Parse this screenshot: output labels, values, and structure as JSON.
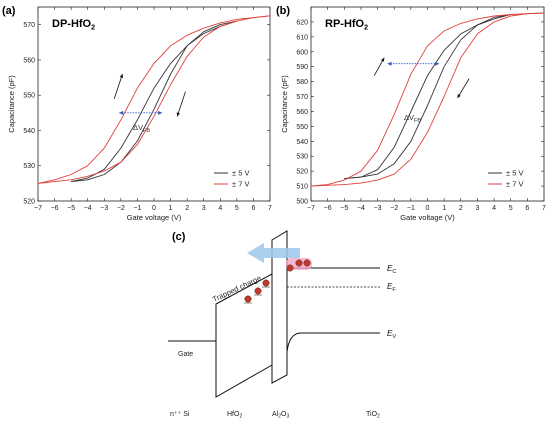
{
  "panels": {
    "a": {
      "label": "(a)",
      "title_main": "DP-HfO",
      "title_sub": "2",
      "dvfb_main": "ΔV",
      "dvfb_sub": "FB"
    },
    "b": {
      "label": "(b)",
      "title_main": "RP-HfO",
      "title_sub": "2",
      "dvfb_main": "ΔV",
      "dvfb_sub": "FB"
    },
    "c": {
      "label": "(c)",
      "trapped_charge": "Trapped charge",
      "gate": "Gate",
      "ec_main": "E",
      "ec_sub": "C",
      "ef_main": "E",
      "ef_sub": "F",
      "ev_main": "E",
      "ev_sub": "V",
      "layers": {
        "nsi": "n⁺⁺ Si",
        "hfo_main": "HfO",
        "hfo_sub": "2",
        "al_main": "Al",
        "al_sub1": "2",
        "al_mid": "O",
        "al_sub2": "3",
        "tio_main": "TiO",
        "tio_sub": "2"
      }
    }
  },
  "chart_data": [
    {
      "type": "line",
      "title": "DP-HfO2",
      "xlabel": "Gate voltage (V)",
      "ylabel": "Capacitance (pF)",
      "xlim": [
        -7,
        7
      ],
      "ylim": [
        520,
        575
      ],
      "xticks": [
        -7,
        -6,
        -5,
        -4,
        -3,
        -2,
        -1,
        0,
        1,
        2,
        3,
        4,
        5,
        6,
        7
      ],
      "yticks": [
        520,
        530,
        540,
        550,
        560,
        570
      ],
      "legend_position": "bottom-right",
      "legend": [
        {
          "label": "± 5 V",
          "color": "#333333"
        },
        {
          "label": "± 7 V",
          "color": "#e0403a"
        }
      ],
      "annotation": "ΔVFB",
      "series": [
        {
          "name": "± 5 V",
          "color": "#333333",
          "sweep": "forward",
          "x": [
            -5,
            -4,
            -3,
            -2,
            -1,
            0,
            1,
            2,
            3,
            4,
            5
          ],
          "y": [
            525.5,
            526.5,
            529,
            535,
            543,
            552,
            559,
            564,
            567.5,
            569.5,
            571
          ]
        },
        {
          "name": "± 5 V",
          "color": "#333333",
          "sweep": "reverse",
          "x": [
            5,
            4,
            3,
            2,
            1,
            0,
            -1,
            -2,
            -3,
            -4,
            -5
          ],
          "y": [
            571,
            570,
            568,
            564,
            556,
            546,
            537,
            531,
            527.5,
            526,
            525.5
          ]
        },
        {
          "name": "± 7 V",
          "color": "#e0403a",
          "sweep": "forward",
          "x": [
            -7,
            -6,
            -5,
            -4,
            -3,
            -2,
            -1,
            0,
            1,
            2,
            3,
            4,
            5,
            6,
            7
          ],
          "y": [
            525,
            526,
            527.5,
            530,
            535,
            543,
            552,
            559,
            564,
            567,
            569,
            570.5,
            571.5,
            572,
            572.5
          ]
        },
        {
          "name": "± 7 V",
          "color": "#e0403a",
          "sweep": "reverse",
          "x": [
            7,
            6,
            5,
            4,
            3,
            2,
            1,
            0,
            -1,
            -2,
            -3,
            -4,
            -5,
            -6,
            -7
          ],
          "y": [
            572.5,
            572,
            571,
            569.5,
            566.5,
            561,
            553,
            544,
            536,
            531,
            528.5,
            527,
            526,
            525.5,
            525
          ]
        }
      ]
    },
    {
      "type": "line",
      "title": "RP-HfO2",
      "xlabel": "Gate voltage (V)",
      "ylabel": "Capacitance (pF)",
      "xlim": [
        -7,
        7
      ],
      "ylim": [
        500,
        630
      ],
      "xticks": [
        -7,
        -6,
        -5,
        -4,
        -3,
        -2,
        -1,
        0,
        1,
        2,
        3,
        4,
        5,
        6,
        7
      ],
      "yticks": [
        500,
        510,
        520,
        530,
        540,
        550,
        560,
        570,
        580,
        590,
        600,
        610,
        620
      ],
      "legend_position": "bottom-right",
      "legend": [
        {
          "label": "± 5 V",
          "color": "#333333"
        },
        {
          "label": "± 7 V",
          "color": "#e0403a"
        }
      ],
      "annotation": "ΔVFB",
      "series": [
        {
          "name": "± 5 V",
          "color": "#333333",
          "sweep": "forward",
          "x": [
            -5,
            -4,
            -3,
            -2,
            -1,
            0,
            1,
            2,
            3,
            4,
            5
          ],
          "y": [
            515,
            516,
            521,
            536,
            560,
            584,
            601,
            612,
            618,
            622,
            625
          ]
        },
        {
          "name": "± 5 V",
          "color": "#333333",
          "sweep": "reverse",
          "x": [
            5,
            4,
            3,
            2,
            1,
            0,
            -1,
            -2,
            -3,
            -4,
            -5
          ],
          "y": [
            625,
            623,
            618,
            608,
            590,
            564,
            540,
            525,
            518,
            516,
            515
          ]
        },
        {
          "name": "± 7 V",
          "color": "#e0403a",
          "sweep": "forward",
          "x": [
            -7,
            -6,
            -5,
            -4,
            -3,
            -2,
            -1,
            0,
            1,
            2,
            3,
            4,
            5,
            6,
            7
          ],
          "y": [
            510,
            511,
            514,
            520,
            534,
            558,
            585,
            604,
            614,
            619,
            622,
            624,
            625,
            625.5,
            626
          ]
        },
        {
          "name": "± 7 V",
          "color": "#e0403a",
          "sweep": "reverse",
          "x": [
            7,
            6,
            5,
            4,
            3,
            2,
            1,
            0,
            -1,
            -2,
            -3,
            -4,
            -5,
            -6,
            -7
          ],
          "y": [
            626,
            625.5,
            624,
            620,
            612,
            596,
            570,
            546,
            528,
            518,
            514,
            512,
            511,
            510.5,
            510
          ]
        }
      ]
    }
  ]
}
